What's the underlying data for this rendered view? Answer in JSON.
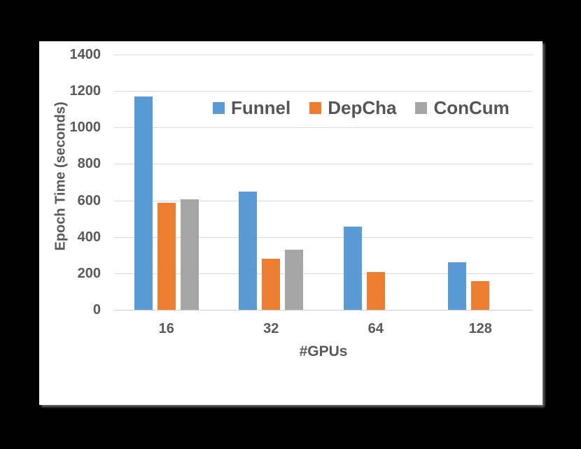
{
  "window": {
    "background_color": "#000000",
    "card_background_color": "#FFFFFF"
  },
  "chart_data": {
    "type": "bar",
    "title": "",
    "categories": [
      "16",
      "32",
      "64",
      "128"
    ],
    "series": [
      {
        "name": "Funnel",
        "color": "#5B9BD5",
        "values": [
          1170,
          648,
          456,
          261
        ]
      },
      {
        "name": "DepCha",
        "color": "#ED7D31",
        "values": [
          588,
          280,
          208,
          156
        ]
      },
      {
        "name": "ConCum",
        "color": "#A5A5A5",
        "values": [
          606,
          331,
          null,
          null
        ]
      }
    ],
    "xlabel": "#GPUs",
    "ylabel": "Epoch Time (seconds)",
    "ylim": [
      0,
      1400
    ],
    "ytick_step": 200,
    "ytick_labels": [
      "0",
      "200",
      "400",
      "600",
      "800",
      "1000",
      "1200",
      "1400"
    ],
    "grid": true,
    "legend_position": "inside-top-center",
    "text_color": "#595959",
    "gridline_color": "#D9D9D9",
    "axisline_color": "#CFCFCF"
  }
}
